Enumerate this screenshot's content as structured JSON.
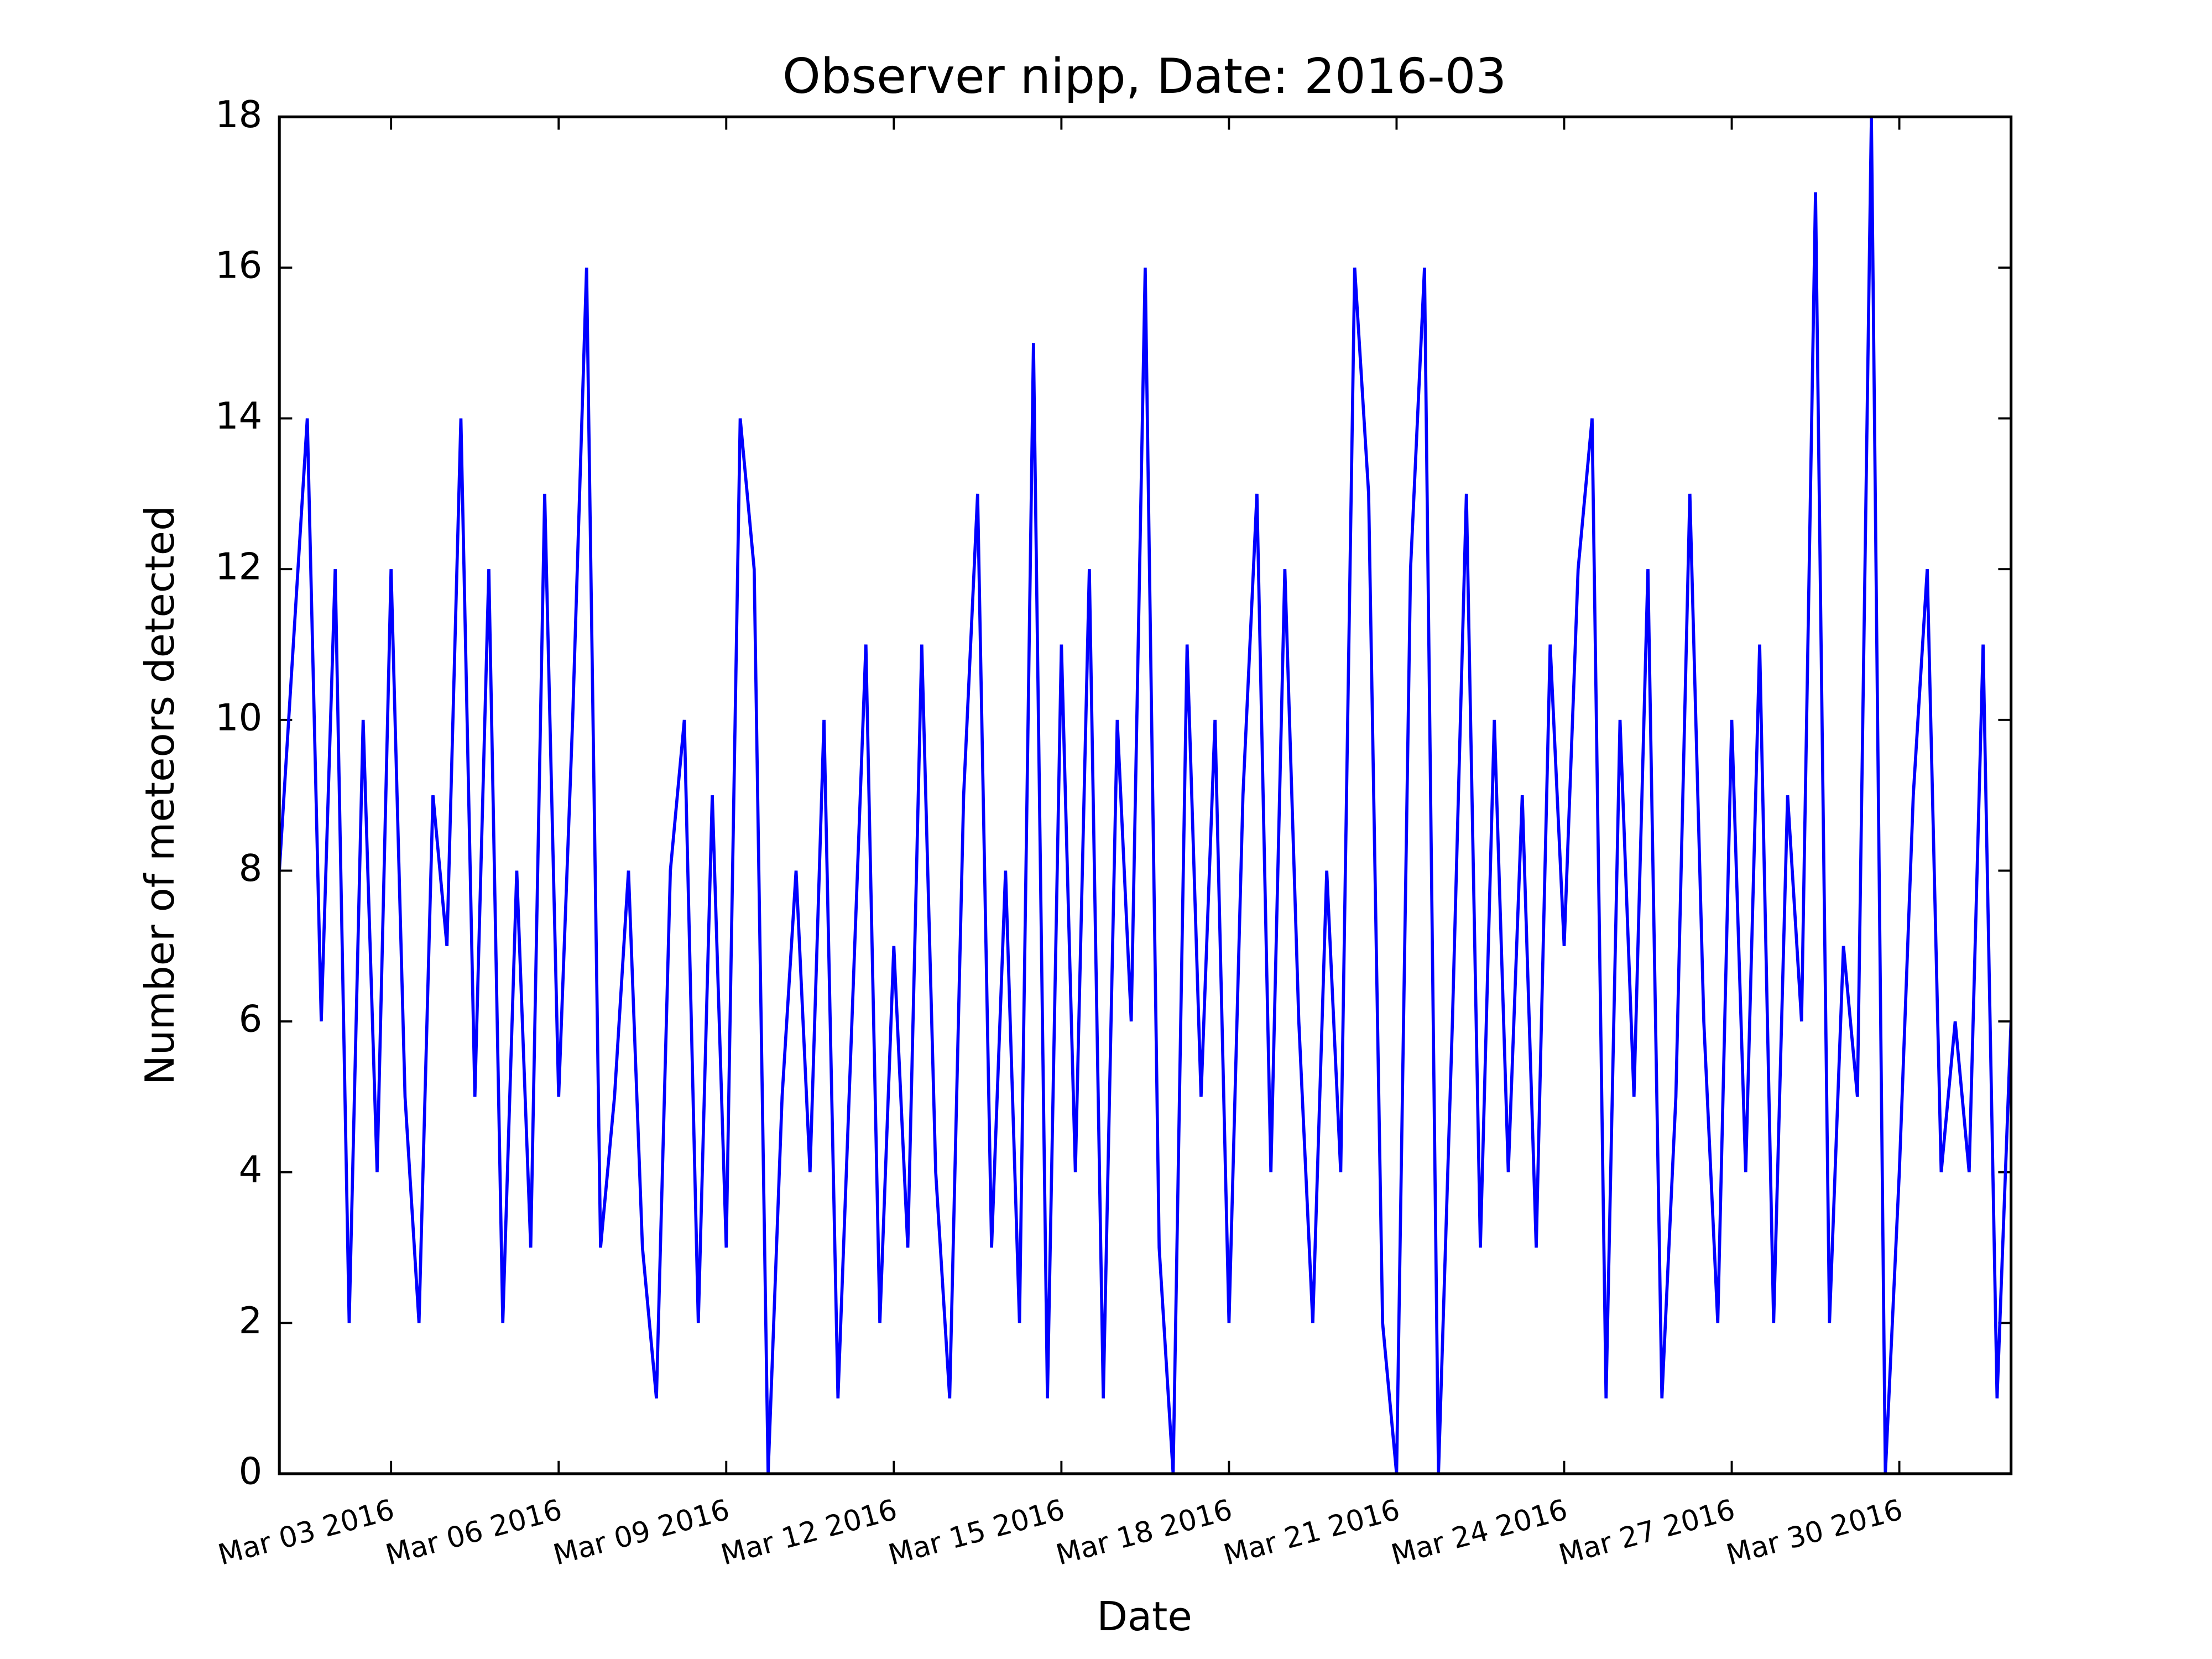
{
  "chart_data": {
    "type": "line",
    "title": "Observer nipp, Date: 2016-03",
    "xlabel": "Date",
    "ylabel": "Number of meteors detected",
    "x": [
      1,
      1.25,
      1.5,
      1.75,
      2,
      2.25,
      2.5,
      2.75,
      3,
      3.25,
      3.5,
      3.75,
      4,
      4.25,
      4.5,
      4.75,
      5,
      5.25,
      5.5,
      5.75,
      6,
      6.25,
      6.5,
      6.75,
      7,
      7.25,
      7.5,
      7.75,
      8,
      8.25,
      8.5,
      8.75,
      9,
      9.25,
      9.5,
      9.75,
      10,
      10.25,
      10.5,
      10.75,
      11,
      11.25,
      11.5,
      11.75,
      12,
      12.25,
      12.5,
      12.75,
      13,
      13.25,
      13.5,
      13.75,
      14,
      14.25,
      14.5,
      14.75,
      15,
      15.25,
      15.5,
      15.75,
      16,
      16.25,
      16.5,
      16.75,
      17,
      17.25,
      17.5,
      17.75,
      18,
      18.25,
      18.5,
      18.75,
      19,
      19.25,
      19.5,
      19.75,
      20,
      20.25,
      20.5,
      20.75,
      21,
      21.25,
      21.5,
      21.75,
      22,
      22.25,
      22.5,
      22.75,
      23,
      23.25,
      23.5,
      23.75,
      24,
      24.25,
      24.5,
      24.75,
      25,
      25.25,
      25.5,
      25.75,
      26,
      26.25,
      26.5,
      26.75,
      27,
      27.25,
      27.5,
      27.75,
      28,
      28.25,
      28.5,
      28.75,
      29,
      29.25,
      29.5,
      29.75,
      30,
      30.25,
      30.5,
      30.75,
      31,
      31.25,
      31.5,
      31.75,
      32
    ],
    "series": [
      {
        "color": "#0000ff",
        "values": [
          8,
          11,
          14,
          6,
          12,
          2,
          10,
          4,
          12,
          5,
          2,
          9,
          7,
          14,
          5,
          12,
          2,
          8,
          3,
          13,
          5,
          10,
          16,
          3,
          5,
          8,
          3,
          1,
          8,
          10,
          2,
          9,
          3,
          14,
          12,
          0,
          5,
          8,
          4,
          10,
          1,
          6,
          11,
          2,
          7,
          3,
          11,
          4,
          1,
          9,
          13,
          3,
          8,
          2,
          15,
          1,
          11,
          4,
          12,
          1,
          10,
          6,
          16,
          3,
          0,
          11,
          5,
          10,
          2,
          9,
          13,
          4,
          12,
          6,
          2,
          8,
          4,
          16,
          13,
          2,
          0,
          12,
          16,
          0,
          6,
          13,
          3,
          10,
          4,
          9,
          3,
          11,
          7,
          12,
          14,
          1,
          10,
          5,
          12,
          1,
          5,
          13,
          6,
          2,
          10,
          4,
          11,
          2,
          9,
          6,
          17,
          2,
          7,
          5,
          18,
          0,
          4,
          9,
          12,
          4,
          6,
          4,
          11,
          1,
          6
        ]
      }
    ],
    "xlim": [
      1,
      32
    ],
    "xticks": [
      {
        "value": 3,
        "label": "Mar 03 2016"
      },
      {
        "value": 6,
        "label": "Mar 06 2016"
      },
      {
        "value": 9,
        "label": "Mar 09 2016"
      },
      {
        "value": 12,
        "label": "Mar 12 2016"
      },
      {
        "value": 15,
        "label": "Mar 15 2016"
      },
      {
        "value": 18,
        "label": "Mar 18 2016"
      },
      {
        "value": 21,
        "label": "Mar 21 2016"
      },
      {
        "value": 24,
        "label": "Mar 24 2016"
      },
      {
        "value": 27,
        "label": "Mar 27 2016"
      },
      {
        "value": 30,
        "label": "Mar 30 2016"
      }
    ],
    "ylim": [
      0,
      18
    ],
    "yticks": [
      0,
      2,
      4,
      6,
      8,
      10,
      12,
      14,
      16,
      18
    ],
    "grid": false
  }
}
